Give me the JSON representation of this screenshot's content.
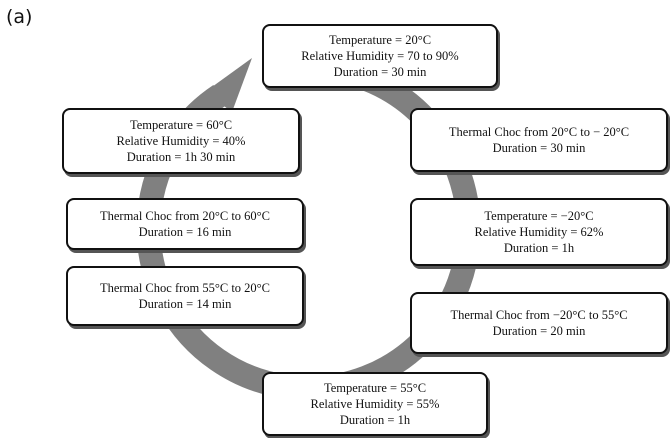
{
  "panel_label": "(a)",
  "colors": {
    "ring": "#808080",
    "box_border": "#111111"
  },
  "boxes": [
    {
      "id": "box-top",
      "lines": [
        "Temperature = 20°C",
        "Relative Humidity = 70 to 90%",
        "Duration = 30 min"
      ]
    },
    {
      "id": "box-r1",
      "lines": [
        "Thermal Choc from 20°C to − 20°C",
        "Duration = 30 min"
      ]
    },
    {
      "id": "box-r2",
      "lines": [
        "Temperature = −20°C",
        "Relative Humidity = 62%",
        "Duration = 1h"
      ]
    },
    {
      "id": "box-r3",
      "lines": [
        "Thermal Choc from −20°C to 55°C",
        "Duration = 20 min"
      ]
    },
    {
      "id": "box-bottom",
      "lines": [
        "Temperature = 55°C",
        "Relative Humidity = 55%",
        "Duration = 1h"
      ]
    },
    {
      "id": "box-l3",
      "lines": [
        "Thermal Choc from 55°C to 20°C",
        "Duration = 14 min"
      ]
    },
    {
      "id": "box-l2",
      "lines": [
        "Thermal Choc from 20°C to 60°C",
        "Duration = 16 min"
      ]
    },
    {
      "id": "box-l1",
      "lines": [
        "Temperature = 60°C",
        "Relative Humidity = 40%",
        "Duration = 1h 30 min"
      ]
    }
  ]
}
